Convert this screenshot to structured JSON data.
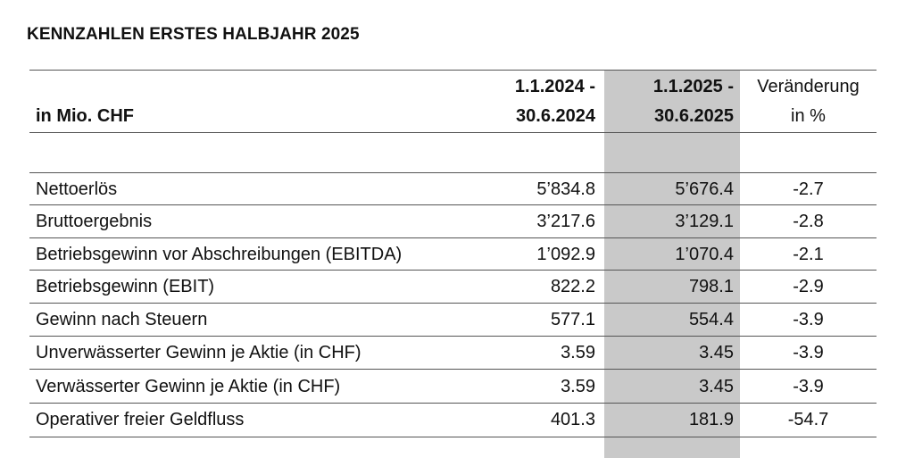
{
  "title": "KENNZAHLEN ERSTES HALBJAHR 2025",
  "header": {
    "unit": "in Mio. CHF",
    "col_2024_line1": "1.1.2024 -",
    "col_2024_line2": "30.6.2024",
    "col_2025_line1": "1.1.2025 -",
    "col_2025_line2": "30.6.2025",
    "change_line1": "Veränderung",
    "change_line2": "in %"
  },
  "rows": [
    {
      "label": "Nettoerlös",
      "v2024": "5’834.8",
      "v2025": "5’676.4",
      "change": "-2.7"
    },
    {
      "label": "Bruttoergebnis",
      "v2024": "3’217.6",
      "v2025": "3’129.1",
      "change": "-2.8"
    },
    {
      "label": "Betriebsgewinn vor Abschreibungen (EBITDA)",
      "v2024": "1’092.9",
      "v2025": "1’070.4",
      "change": "-2.1"
    },
    {
      "label": "Betriebsgewinn (EBIT)",
      "v2024": "822.2",
      "v2025": "798.1",
      "change": "-2.9"
    },
    {
      "label": "Gewinn nach Steuern",
      "v2024": "577.1",
      "v2025": "554.4",
      "change": "-3.9"
    },
    {
      "label": "Unverwässerter Gewinn je Aktie (in CHF)",
      "v2024": "3.59",
      "v2025": "3.45",
      "change": "-3.9"
    },
    {
      "label": "Verwässerter Gewinn je Aktie (in CHF)",
      "v2024": "3.59",
      "v2025": "3.45",
      "change": "-3.9"
    },
    {
      "label": "Operativer freier Geldfluss",
      "v2024": "401.3",
      "v2025": "181.9",
      "change": "-54.7"
    }
  ]
}
